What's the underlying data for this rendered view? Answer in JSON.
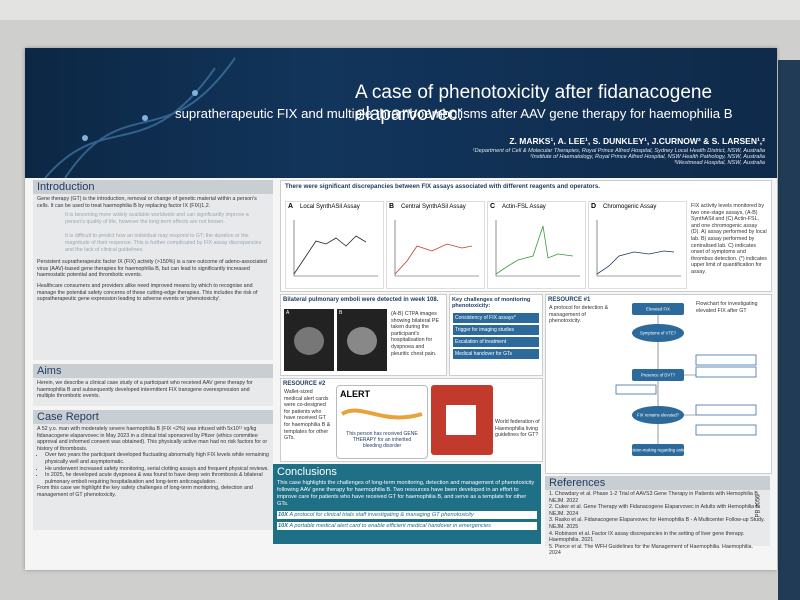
{
  "header": {
    "title": "A case of phenotoxicity after fidanacogene elaparvovec:",
    "subtitle": "supratherapeutic FIX and multiple thromboembolisms after AAV gene therapy for haemophilia B",
    "authors": "Z. MARKS¹, A. LEE¹, S. DUNKLEY¹, J.CURNOW³ & S. LARSEN¹,²",
    "affiliations": [
      "¹Department of Cell & Molecular Therapies, Royal Prince Alfred Hospital, Sydney Local Health District, NSW, Australia",
      "²Institute of Haematology, Royal Prince Alfred Hospital, NSW Health Pathology, NSW, Australia",
      "³Westmead Hospital, NSW, Australia"
    ]
  },
  "introduction": {
    "heading": "Introduction",
    "paragraphs": [
      "Gene therapy (GT) is the introduction, removal or change of genetic material within a person's cells. It can be used to treat haemophilia B by replacing factor IX (FIX)1,2.",
      "It is becoming more widely available worldwide and can significantly improve a person's quality of life, however the long-term effects are not known.",
      "It is difficult to predict how an individual may respond to GT; the duration or the magnitude of their response. This is further complicated by FIX assay discrepancies and the lack of clinical guidelines.",
      "Persistent supratherapeutic factor IX (FIX) activity (>150%) is a rare outcome of adeno-associated virus (AAV)-based gene therapies for haemophilia B, but can lead to significantly increased haemostatic potential and thrombotic events.",
      "Healthcare consumers and providers alike need improved means by which to recognise and manage the potential safety concerns of these cutting-edge therapies. This includes the risk of supratherapeutic gene expression leading to adverse events or 'phenotoxicity'."
    ]
  },
  "aims": {
    "heading": "Aims",
    "text": "Herein, we describe a clinical case study of a participant who received AAV gene therapy for haemophilia B and subsequently developed intermittent FIX transgene overexpression and multiple thrombotic events."
  },
  "case_report": {
    "heading": "Case Report",
    "text": "A 52 y.o. man with moderately severe haemophilia B (FIX <2%) was infused with 5x10¹¹ vg/kg fidanacogene elaparvovec in May 2023 in a clinical trial sponsored by Pfizer (ethics committee approval and informed consent was obtained). This physically active man had no risk factors for or history of thrombosis.",
    "bullets": [
      "Over two years the participant developed fluctuating abnormally high FIX levels while remaining physically well and asymptomatic.",
      "He underwent increased safety monitoring, serial clotting assays and frequent physical reviews.",
      "In 2025, he developed acute dyspnoea & was found to have deep vein thrombosis & bilateral pulmonary emboli requiring hospitalisation and long-term anticoagulation."
    ],
    "closing": "From this case we highlight the key safety challenges of long-term monitoring, detection and management of GT phenotoxicity."
  },
  "figure": {
    "heading": "There were significant discrepancies between FIX assays associated with different reagents and operators.",
    "panels": [
      {
        "letter": "A",
        "title": "Local SynthASil Assay"
      },
      {
        "letter": "B",
        "title": "Central SynthASil Assay"
      },
      {
        "letter": "C",
        "title": "Actin-FSL Assay"
      },
      {
        "letter": "D",
        "title": "Chromogenic Assay"
      }
    ],
    "caption": "FIX activity levels monitored by two one-stage assays, (A-B) SynthASil and (C) Actin-FSL, and one chromogenic assay (D). A) assay performed by local lab. B) assay performed by centralised lab. C) indicates onset of symptoms and thrombus detection. (*) indicates upper limit of quantification for assay."
  },
  "emboli": {
    "heading": "Bilateral pulmonary emboli were detected in week 108.",
    "image_labels": [
      "A",
      "B"
    ],
    "caption": "(A-B) CTPA images showing bilateral PE taken during the participant's hospitalisation for dyspnoea and pleuritic chest pain."
  },
  "challenges": {
    "heading": "Key challenges of monitoring phenotoxicity:",
    "items": [
      "Consistency of FIX assays*",
      "Trigger for imaging studies",
      "Escalation of treatment",
      "Medical handover for GTs"
    ]
  },
  "resource1": {
    "label": "RESOURCE #1",
    "text": "A protocol for detection & management of phenotoxicity.",
    "flowchart_caption": "Flowchart for investigating elevated FIX after GT",
    "nodes": [
      "Elevated FIX",
      "Symptoms of VTE?",
      "Presence of DVT?",
      "FIX remains elevated?",
      "Shared decision-making regarding anticoagulation"
    ]
  },
  "resource2": {
    "label": "RESOURCE #2",
    "text": "Wallet-sized medical alert cards were co-designed for patients who have received GT for haemophilia B & templates for other GTs.",
    "card_title": "ALERT",
    "card_text": "This person has received GENE THERAPY for an inherited bleeding disorder",
    "wfh_text": "World federation of Haemophilia living guidelines for GT?"
  },
  "conclusions": {
    "heading": "Conclusions",
    "text": "This case highlights the challenges of long-term monitoring, detection and management of phenotoxicity following AAV gene therapy for haemophilia B. Two resources have been developed in an effort to improve care for patients who have received GT for haemophilia B, and serve as a template for other GTs.",
    "links": [
      {
        "tag": "10X",
        "text": "A protocol for clinical trials staff investigating & managing GT phenotoxicity"
      },
      {
        "tag": "10X",
        "text": "A portable medical alert card to enable efficient medical handover in emergencies"
      }
    ]
  },
  "references": {
    "heading": "References",
    "items": [
      "1. Chowdary et al. Phase 1-2 Trial of AAVS3 Gene Therapy in Patients with Hemophilia B. NEJM. 2022",
      "2. Cuker et al. Gene Therapy with Fidanacogene Elaparvovec in Adults with Hemophilia B. NEJM. 2024",
      "3. Rasko et al. Fidanacogene Elaparvovec for Hemophilia B - A Multicenter Follow-up Study. NEJM. 2025",
      "4. Robinson et al. Factor IX assay discrepancies in the setting of liver gene therapy. Haemophilia. 2021",
      "5. Pierce et al. The WFH Guidelines for the Management of Haemophilia. Haemophilia. 2024"
    ]
  },
  "poster_id": "PB 2056"
}
